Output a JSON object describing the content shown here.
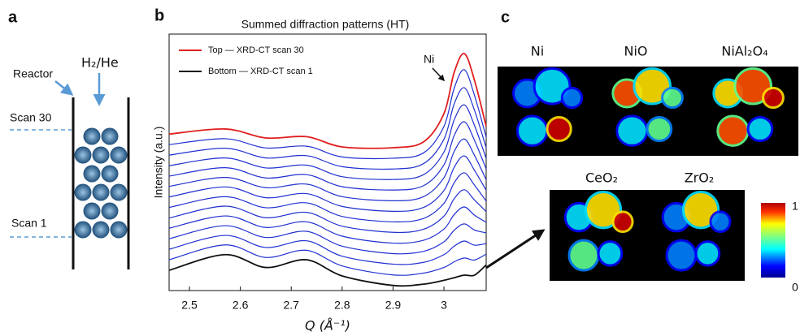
{
  "panel_a": {
    "label": "a",
    "reactor": "Reactor",
    "gas": "H₂/He",
    "scan_top": "Scan 30",
    "scan_bottom": "Scan 1"
  },
  "chart_data": {
    "type": "line",
    "panel_label": "b",
    "title": "Summed diffraction patterns (HT)",
    "x_label": "Q (Å⁻¹)",
    "y_label": "Intensity (a.u.)",
    "annotation": "Ni",
    "legend": "upper left",
    "x": [
      2.46,
      2.57,
      2.65,
      2.73,
      2.8,
      2.9,
      2.96,
      3.0,
      3.02,
      3.04,
      3.06,
      3.083
    ],
    "xlim": [
      2.46,
      3.083
    ],
    "xticks": [
      2.5,
      2.6,
      2.7,
      2.8,
      2.9,
      3
    ],
    "ylim": [
      0,
      100
    ],
    "series": [
      {
        "name": "Top — XRD-CT scan 30",
        "color": "#e02020",
        "values": [
          61,
          63,
          59.5,
          60,
          56,
          55.7,
          58,
          69,
          85,
          92.4,
          82,
          64
        ]
      },
      {
        "name": "Bottom — XRD-CT scan 1",
        "color": "#111111",
        "values": [
          7.9,
          14,
          9,
          12,
          5.7,
          2,
          2.5,
          4,
          5,
          6,
          6,
          10
        ]
      },
      {
        "color": "#2030d0",
        "values": [
          12.0,
          17.8,
          12.9,
          15.7,
          9.6,
          6.1,
          6.8,
          9.0,
          11.2,
          12.7,
          11.9,
          14.2
        ]
      },
      {
        "color": "#2030d0",
        "values": [
          16.1,
          21.5,
          16.8,
          19.4,
          13.4,
          10.3,
          11.0,
          14.0,
          17.3,
          19.3,
          17.7,
          18.3
        ]
      },
      {
        "color": "#2030d0",
        "values": [
          20.2,
          25.3,
          20.7,
          23.1,
          17.3,
          14.4,
          15.3,
          19.0,
          23.5,
          26.0,
          23.6,
          22.5
        ]
      },
      {
        "color": "#2030d0",
        "values": [
          24.3,
          29.1,
          24.6,
          26.8,
          21.2,
          18.5,
          19.6,
          24.0,
          29.6,
          32.6,
          29.4,
          26.6
        ]
      },
      {
        "color": "#2030d0",
        "values": [
          28.3,
          32.9,
          28.4,
          30.5,
          25.1,
          22.7,
          23.9,
          29.0,
          35.8,
          39.3,
          35.3,
          30.8
        ]
      },
      {
        "color": "#2030d0",
        "values": [
          32.4,
          36.6,
          32.3,
          34.2,
          28.9,
          26.8,
          28.1,
          34.0,
          42.0,
          45.9,
          41.1,
          34.9
        ]
      },
      {
        "color": "#2030d0",
        "values": [
          36.5,
          40.4,
          36.2,
          37.8,
          32.8,
          30.9,
          32.4,
          39.0,
          48.0,
          52.5,
          46.9,
          39.1
        ]
      },
      {
        "color": "#2030d0",
        "values": [
          40.6,
          44.1,
          40.1,
          41.5,
          36.6,
          35.0,
          36.6,
          44.0,
          54.2,
          59.1,
          52.7,
          43.2
        ]
      },
      {
        "color": "#2030d0",
        "values": [
          44.6,
          47.9,
          43.9,
          45.2,
          40.5,
          39.2,
          40.9,
          49.0,
          60.4,
          65.8,
          58.6,
          47.4
        ]
      },
      {
        "color": "#2030d0",
        "values": [
          48.7,
          51.7,
          47.8,
          48.9,
          44.4,
          43.3,
          45.2,
          54.0,
          66.5,
          72.4,
          64.4,
          51.5
        ]
      },
      {
        "color": "#2030d0",
        "values": [
          52.8,
          55.5,
          51.7,
          52.6,
          48.3,
          47.4,
          49.5,
          59.0,
          72.7,
          79.1,
          70.3,
          55.7
        ]
      },
      {
        "color": "#2030d0",
        "values": [
          56.9,
          59.2,
          55.6,
          56.3,
          52.1,
          51.6,
          53.7,
          64.0,
          78.8,
          86.1,
          76.1,
          59.8
        ]
      }
    ]
  },
  "panel_c": {
    "label": "c",
    "maps": [
      "Ni",
      "NiO",
      "NiAl₂O₄",
      "CeO₂",
      "ZrO₂"
    ],
    "colorbar_ticks": [
      1,
      0
    ]
  }
}
